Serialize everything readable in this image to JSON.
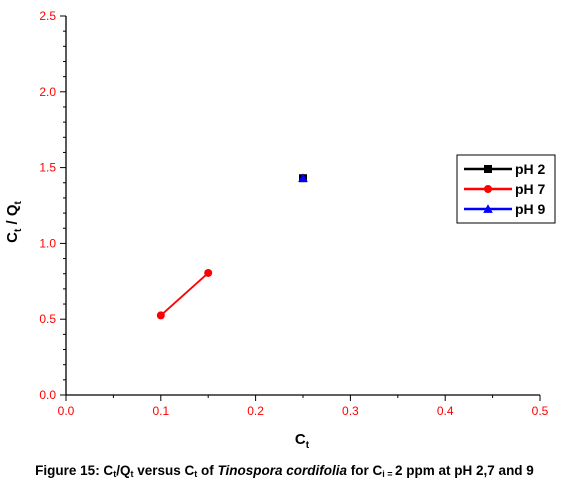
{
  "chart_data": {
    "type": "line",
    "xlabel_main": "C",
    "xlabel_sub": "t",
    "ylabel_main1": "C",
    "ylabel_sub1": "t",
    "ylabel_sep": " / Q",
    "ylabel_sub2": "t",
    "xlim": [
      0.0,
      0.5
    ],
    "ylim": [
      0.0,
      2.5
    ],
    "xticks": [
      "0.0",
      "0.1",
      "0.2",
      "0.3",
      "0.4",
      "0.5"
    ],
    "xtick_values": [
      0.0,
      0.1,
      0.2,
      0.3,
      0.4,
      0.5
    ],
    "yticks": [
      "0.0",
      "0.5",
      "1.0",
      "1.5",
      "2.0",
      "2.5"
    ],
    "ytick_values": [
      0.0,
      0.5,
      1.0,
      1.5,
      2.0,
      2.5
    ],
    "tick_color": "#ff0000",
    "grid": false,
    "legend_position": "right",
    "series": [
      {
        "name": "pH 2",
        "color": "#000000",
        "marker": "square",
        "x": [
          0.25
        ],
        "y": [
          1.43
        ]
      },
      {
        "name": "pH 7",
        "color": "#ff0000",
        "marker": "circle",
        "x": [
          0.1,
          0.15
        ],
        "y": [
          0.525,
          0.805
        ]
      },
      {
        "name": "pH 9",
        "color": "#0000ff",
        "marker": "triangle",
        "x": [
          0.25
        ],
        "y": [
          1.43
        ]
      }
    ]
  },
  "caption": {
    "p1": "Figure 15: C",
    "s1": "t",
    "p2": "/Q",
    "s2": "t",
    "p3": " versus C",
    "s3": "t",
    "p4": " of ",
    "italic": "Tinospora cordifolia",
    "p5": " for C",
    "s4": "i = ",
    "p6": "2 ppm at pH 2,7 and 9"
  }
}
